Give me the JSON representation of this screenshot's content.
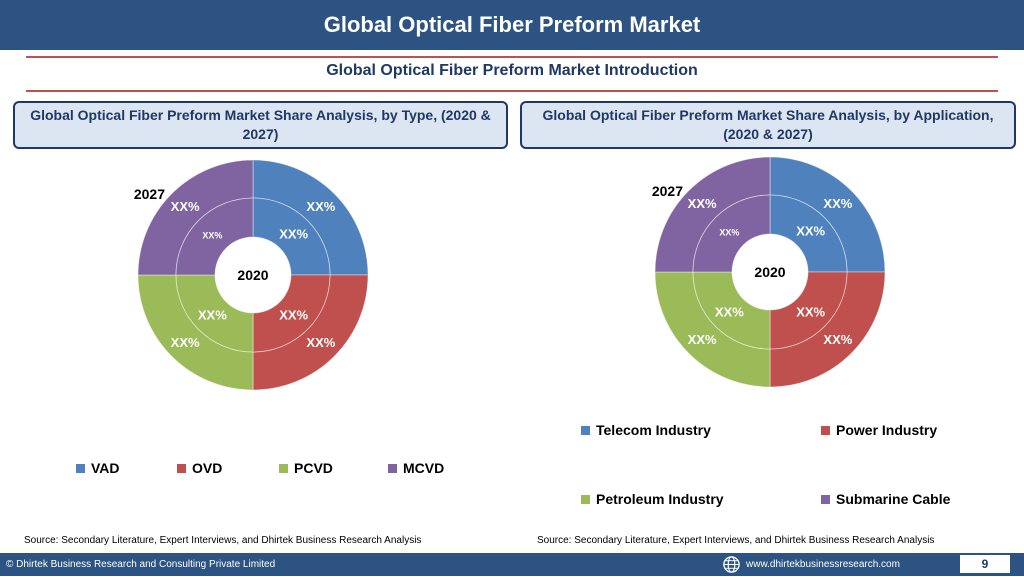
{
  "header": {
    "title": "Global Optical Fiber Preform Market"
  },
  "section": {
    "subtitle": "Global Optical Fiber Preform Market  Introduction"
  },
  "panels": {
    "left": {
      "heading": "Global Optical Fiber Preform Market  Share Analysis, by Type, (2020 & 2027)"
    },
    "right": {
      "heading": "Global Optical Fiber Preform Market  Share Analysis, by Application, (2020 & 2027)"
    }
  },
  "chart_data": [
    {
      "type": "pie",
      "title": "Global Optical Fiber Preform Market  Share Analysis, by Type, (2020 & 2027)",
      "variant": "nested-donut",
      "outer_ring_label": "2027",
      "inner_ring_label": "2020",
      "categories": [
        "VAD",
        "OVD",
        "PCVD",
        "MCVD"
      ],
      "colors": [
        "#4f81bd",
        "#c0504d",
        "#9bbb59",
        "#8064a2"
      ],
      "series": [
        {
          "name": "2027",
          "values": [
            25,
            25,
            25,
            25
          ],
          "labels": [
            "XX%",
            "XX%",
            "XX%",
            "XX%"
          ]
        },
        {
          "name": "2020",
          "values": [
            25,
            25,
            25,
            25
          ],
          "labels": [
            "XX%",
            "XX%",
            "XX%",
            "XX%"
          ]
        }
      ],
      "legend": "bottom"
    },
    {
      "type": "pie",
      "title": "Global Optical Fiber Preform Market  Share Analysis, by Application, (2020 & 2027)",
      "variant": "nested-donut",
      "outer_ring_label": "2027",
      "inner_ring_label": "2020",
      "categories": [
        "Telecom Industry",
        "Power Industry",
        "Petroleum Industry",
        "Submarine Cable"
      ],
      "colors": [
        "#4f81bd",
        "#c0504d",
        "#9bbb59",
        "#8064a2"
      ],
      "series": [
        {
          "name": "2027",
          "values": [
            25,
            25,
            25,
            25
          ],
          "labels": [
            "XX%",
            "XX%",
            "XX%",
            "XX%"
          ]
        },
        {
          "name": "2020",
          "values": [
            25,
            25,
            25,
            25
          ],
          "labels": [
            "XX%",
            "XX%",
            "XX%",
            "XX%"
          ]
        }
      ],
      "legend": "bottom"
    }
  ],
  "sources": {
    "left": "Source: Secondary Literature, Expert Interviews, and Dhirtek Business Research Analysis",
    "right": "Source: Secondary Literature, Expert Interviews, and Dhirtek Business Research Analysis"
  },
  "footer": {
    "copyright": "© Dhirtek Business Research and Consulting Private Limited",
    "website": "www.dhirtekbusinessresearch.com",
    "page_number": "9"
  }
}
